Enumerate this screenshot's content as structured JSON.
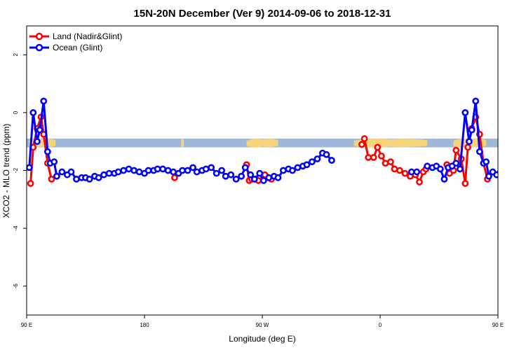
{
  "chart_data": {
    "type": "line",
    "title": "15N-20N December (Ver 9)   2014-09-06 to 2018-12-31",
    "xlabel": "Longitude (deg E)",
    "ylabel": "XCO2 - MLO trend (ppm)",
    "xlim": [
      90,
      450
    ],
    "ylim": [
      -7,
      3
    ],
    "x_ticks": [
      {
        "value": 90,
        "label": "90 E"
      },
      {
        "value": 180,
        "label": "180"
      },
      {
        "value": 270,
        "label": "90 W"
      },
      {
        "value": 360,
        "label": "0"
      },
      {
        "value": 450,
        "label": "90 E"
      },
      {
        "value": 540,
        "label": "180"
      }
    ],
    "y_ticks": [
      {
        "value": 2,
        "label": "2"
      },
      {
        "value": 0,
        "label": "0"
      },
      {
        "value": -2,
        "label": "-2"
      },
      {
        "value": -4,
        "label": "-4"
      },
      {
        "value": -6,
        "label": "-6"
      }
    ],
    "grid": false,
    "legend_position": "top-left",
    "band": {
      "ymin": -1.2,
      "ymax": -0.9,
      "color": "#a0b8d8",
      "land_color": "#f6d57a"
    },
    "series": [
      {
        "name": "Land (Nadir&Glint)",
        "color": "#ff0000",
        "segments": [
          [
            [
              93,
              -2.45
            ],
            [
              95,
              -1.2
            ],
            [
              98,
              -0.55
            ],
            [
              101,
              -0.15
            ],
            [
              103,
              -0.75
            ],
            [
              106,
              -1.75
            ],
            [
              109,
              -2.3
            ]
          ],
          [
            [
              203,
              -2.25
            ]
          ],
          [
            [
              258,
              -1.8
            ],
            [
              260,
              -2.35
            ],
            [
              262,
              -2.3
            ],
            [
              265,
              -2.3
            ],
            [
              267,
              -2.35
            ],
            [
              272,
              -2.15
            ],
            [
              277,
              -2.3
            ]
          ],
          [
            [
              346,
              -1.1
            ],
            [
              348,
              -0.9
            ],
            [
              351,
              -1.55
            ],
            [
              355,
              -1.55
            ],
            [
              358,
              -1.2
            ],
            [
              361,
              -1.5
            ],
            [
              364,
              -1.75
            ],
            [
              368,
              -1.7
            ],
            [
              371,
              -1.95
            ],
            [
              375,
              -2.0
            ],
            [
              379,
              -2.1
            ],
            [
              383,
              -2.2
            ],
            [
              387,
              -2.15
            ],
            [
              390,
              -2.4
            ],
            [
              393,
              -2.05
            ],
            [
              395,
              -1.95
            ]
          ],
          [
            [
              411,
              -1.8
            ],
            [
              413,
              -2.1
            ],
            [
              416,
              -2.0
            ],
            [
              418,
              -1.3
            ],
            [
              422,
              -1.6
            ],
            [
              425,
              -2.45
            ],
            [
              427,
              -1.2
            ],
            [
              430,
              -0.55
            ],
            [
              433,
              -0.15
            ],
            [
              436,
              -0.75
            ],
            [
              439,
              -1.75
            ],
            [
              442,
              -2.3
            ]
          ]
        ]
      },
      {
        "name": "Ocean (Glint)",
        "color": "#0000ff",
        "segments": [
          [
            [
              92,
              -1.9
            ],
            [
              95,
              0.0
            ],
            [
              98,
              -1.0
            ],
            [
              100,
              -0.6
            ],
            [
              103,
              0.4
            ],
            [
              106,
              -1.35
            ],
            [
              108,
              -1.75
            ],
            [
              111,
              -1.7
            ],
            [
              113,
              -2.2
            ],
            [
              117,
              -2.05
            ],
            [
              121,
              -2.15
            ],
            [
              124,
              -2.05
            ],
            [
              128,
              -2.3
            ],
            [
              132,
              -2.25
            ],
            [
              135,
              -2.25
            ],
            [
              138,
              -2.3
            ],
            [
              142,
              -2.2
            ],
            [
              145,
              -2.25
            ],
            [
              149,
              -2.15
            ],
            [
              153,
              -2.1
            ],
            [
              157,
              -2.1
            ],
            [
              160,
              -2.05
            ],
            [
              164,
              -2.0
            ],
            [
              168,
              -1.95
            ],
            [
              172,
              -2.0
            ],
            [
              176,
              -2.05
            ],
            [
              180,
              -2.1
            ],
            [
              183,
              -2.0
            ],
            [
              187,
              -2.0
            ],
            [
              190,
              -1.95
            ],
            [
              194,
              -1.95
            ],
            [
              198,
              -2.0
            ],
            [
              202,
              -2.05
            ],
            [
              206,
              -2.1
            ],
            [
              209,
              -2.0
            ],
            [
              213,
              -2.0
            ],
            [
              217,
              -1.9
            ],
            [
              220,
              -2.05
            ],
            [
              224,
              -2.0
            ],
            [
              227,
              -1.95
            ],
            [
              231,
              -1.9
            ],
            [
              235,
              -2.1
            ],
            [
              239,
              -2.0
            ],
            [
              242,
              -2.2
            ],
            [
              246,
              -2.15
            ],
            [
              250,
              -2.3
            ],
            [
              254,
              -2.2
            ],
            [
              257,
              -1.9
            ],
            [
              261,
              -2.15
            ],
            [
              264,
              -2.3
            ],
            [
              268,
              -2.1
            ],
            [
              271,
              -2.35
            ],
            [
              275,
              -2.25
            ],
            [
              279,
              -2.2
            ],
            [
              282,
              -2.25
            ],
            [
              286,
              -2.0
            ],
            [
              290,
              -1.95
            ],
            [
              293,
              -2.0
            ],
            [
              297,
              -1.9
            ],
            [
              301,
              -1.85
            ],
            [
              304,
              -1.8
            ],
            [
              308,
              -1.7
            ],
            [
              312,
              -1.6
            ],
            [
              316,
              -1.4
            ],
            [
              319,
              -1.45
            ],
            [
              323,
              -1.65
            ]
          ],
          [
            [
              384,
              -2.05
            ],
            [
              388,
              -2.05
            ]
          ],
          [
            [
              396,
              -1.85
            ],
            [
              400,
              -1.9
            ],
            [
              403,
              -1.85
            ],
            [
              406,
              -1.95
            ],
            [
              409,
              -2.3
            ],
            [
              412,
              -1.9
            ],
            [
              415,
              -1.85
            ],
            [
              418,
              -1.75
            ],
            [
              421,
              -1.95
            ],
            [
              425,
              0.0
            ],
            [
              428,
              -1.0
            ],
            [
              430,
              -0.6
            ],
            [
              433,
              0.4
            ],
            [
              436,
              -1.35
            ],
            [
              439,
              -1.75
            ],
            [
              441,
              -1.7
            ],
            [
              443,
              -2.2
            ],
            [
              446,
              -2.05
            ],
            [
              449,
              -2.15
            ],
            [
              452,
              -2.05
            ],
            [
              456,
              -2.3
            ],
            [
              459,
              -2.25
            ],
            [
              463,
              -2.25
            ],
            [
              466,
              -2.3
            ],
            [
              470,
              -2.2
            ],
            [
              473,
              -2.25
            ],
            [
              477,
              -2.15
            ],
            [
              480,
              -2.1
            ]
          ]
        ]
      }
    ]
  }
}
